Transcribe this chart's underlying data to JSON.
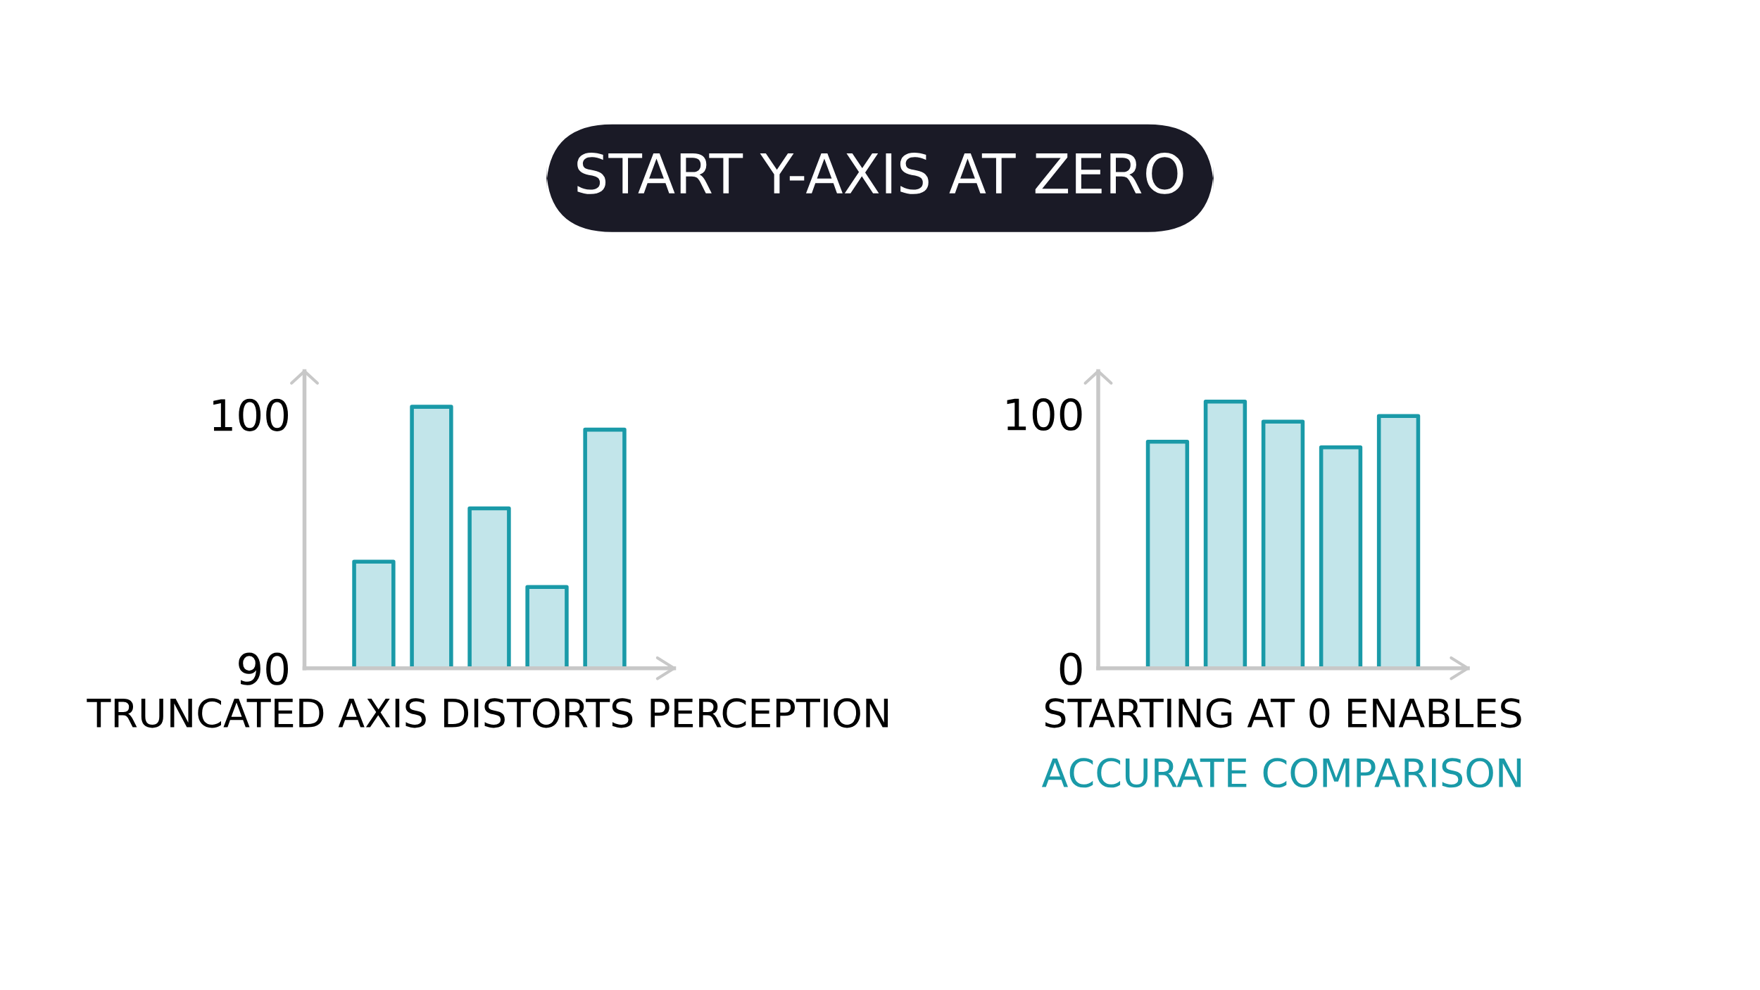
{
  "chart_data": [
    {
      "type": "bar",
      "title": "START Y-AXIS AT ZERO",
      "xlabel": "TRUNCATED AXIS DISTORTS PERCEPTION",
      "categories": [
        null,
        null,
        null,
        null,
        null
      ],
      "color": "#c2e5ea",
      "values": [
        94.2,
        100.3,
        96.3,
        93.2,
        99.4
      ],
      "ylim": [
        90,
        101.7
      ],
      "yticks": [
        90,
        100
      ],
      "grid": false,
      "tick_labels": "y"
    },
    {
      "type": "bar",
      "xlabel": "STARTING AT 0 ENABLES",
      "annotations": [
        "ACCURATE COMPARISON"
      ],
      "categories": [
        null,
        null,
        null,
        null,
        null
      ],
      "color": "#c2e5ea",
      "values": [
        89,
        104.8,
        96.9,
        86.8,
        99.1
      ],
      "ylim": [
        0,
        116.7
      ],
      "yticks": [
        0,
        100
      ],
      "grid": false,
      "tick_labels": "y"
    }
  ]
}
